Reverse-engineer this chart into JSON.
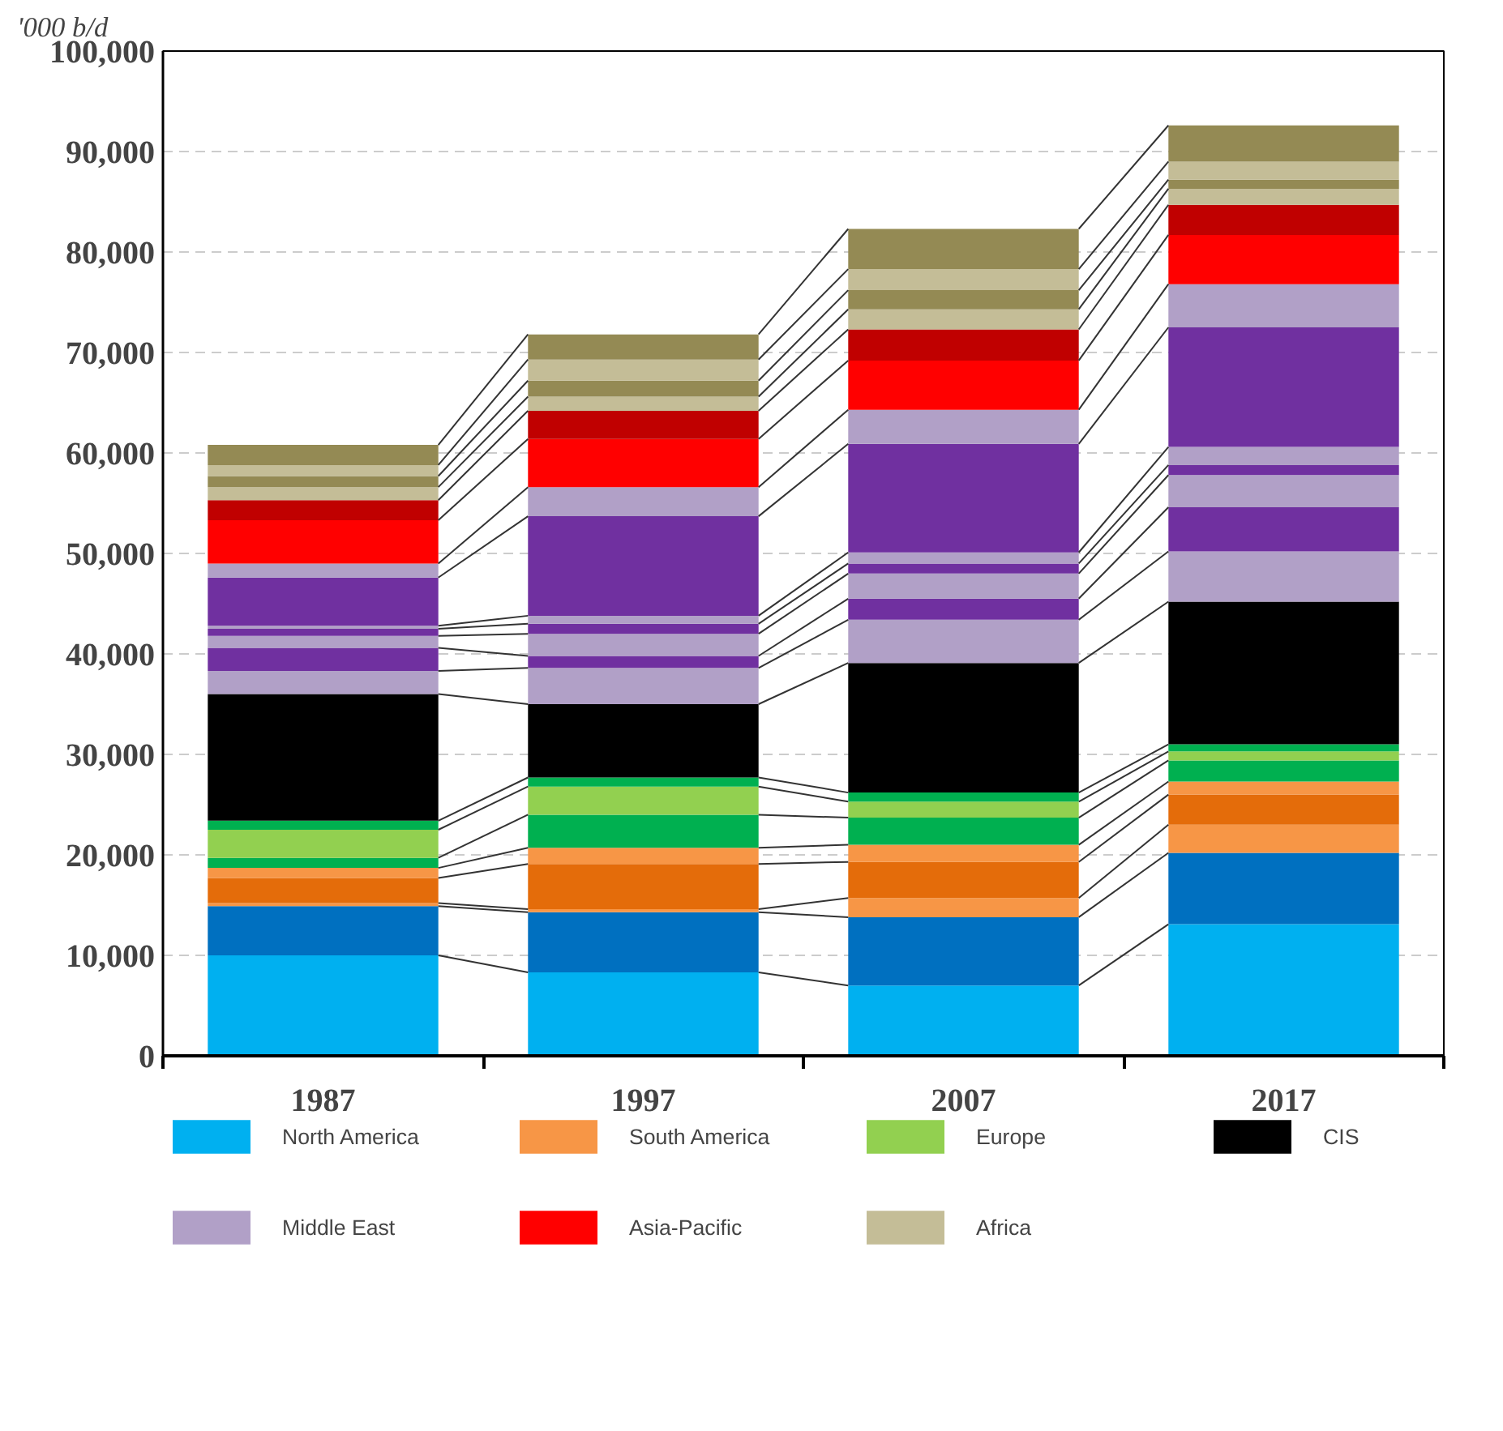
{
  "chart_data": {
    "type": "bar",
    "stacked": true,
    "ylabel": "'000 b/d",
    "categories": [
      "1987",
      "1997",
      "2007",
      "2017"
    ],
    "ylim": [
      0,
      100000
    ],
    "yticks": [
      {
        "value": 0,
        "label": "0"
      },
      {
        "value": 10000,
        "label": "10,000"
      },
      {
        "value": 20000,
        "label": "20,000"
      },
      {
        "value": 30000,
        "label": "30,000"
      },
      {
        "value": 40000,
        "label": "40,000"
      },
      {
        "value": 50000,
        "label": "50,000"
      },
      {
        "value": 60000,
        "label": "60,000"
      },
      {
        "value": 70000,
        "label": "70,000"
      },
      {
        "value": 80000,
        "label": "80,000"
      },
      {
        "value": 90000,
        "label": "90,000"
      },
      {
        "value": 100000,
        "label": "100,000"
      }
    ],
    "grid": "y",
    "legend": "bottom",
    "series": [
      {
        "name": "North America",
        "color": "#00b0f0",
        "values": [
          10000,
          8300,
          7000,
          13100
        ]
      },
      {
        "color": "#0070c0",
        "values": [
          4900,
          6000,
          6800,
          7100
        ]
      },
      {
        "name": "South America",
        "color": "#f79646",
        "values": [
          300,
          300,
          1900,
          2800
        ]
      },
      {
        "color": "#e46c0a",
        "values": [
          2500,
          4500,
          3600,
          3000
        ]
      },
      {
        "color": "#f79646",
        "values": [
          1000,
          1600,
          1700,
          1300
        ]
      },
      {
        "color": "#00b050",
        "values": [
          1000,
          3300,
          2700,
          2100
        ]
      },
      {
        "name": "Europe",
        "color": "#92d050",
        "values": [
          2800,
          2800,
          1600,
          900
        ]
      },
      {
        "color": "#00b050",
        "values": [
          900,
          900,
          900,
          700
        ]
      },
      {
        "name": "CIS",
        "color": "#000000",
        "values": [
          12600,
          7300,
          12900,
          14200
        ]
      },
      {
        "name": "Middle East",
        "color": "#b1a0c7",
        "values": [
          2300,
          3600,
          4300,
          5000
        ]
      },
      {
        "color": "#7030a0",
        "values": [
          2300,
          1200,
          2100,
          4400
        ]
      },
      {
        "color": "#b1a0c7",
        "values": [
          1200,
          2200,
          2500,
          3200
        ]
      },
      {
        "color": "#7030a0",
        "values": [
          700,
          1000,
          1000,
          1000
        ]
      },
      {
        "color": "#b1a0c7",
        "values": [
          300,
          800,
          1100,
          1800
        ]
      },
      {
        "color": "#7030a0",
        "values": [
          4800,
          9900,
          10800,
          11900
        ]
      },
      {
        "color": "#b1a0c7",
        "values": [
          1400,
          2900,
          3400,
          4300
        ]
      },
      {
        "name": "Asia-Pacific",
        "color": "#ff0000",
        "values": [
          4300,
          4800,
          4900,
          4900
        ]
      },
      {
        "color": "#c00000",
        "values": [
          2000,
          2800,
          3100,
          3000
        ]
      },
      {
        "name": "Africa",
        "color": "#c4bd97",
        "values": [
          1300,
          1400,
          2000,
          1600
        ]
      },
      {
        "color": "#948a54",
        "values": [
          1100,
          1600,
          1900,
          900
        ]
      },
      {
        "color": "#c4bd97",
        "values": [
          1100,
          2100,
          2100,
          1800
        ]
      },
      {
        "color": "#948a54",
        "values": [
          2000,
          2500,
          4000,
          3600
        ]
      }
    ]
  }
}
